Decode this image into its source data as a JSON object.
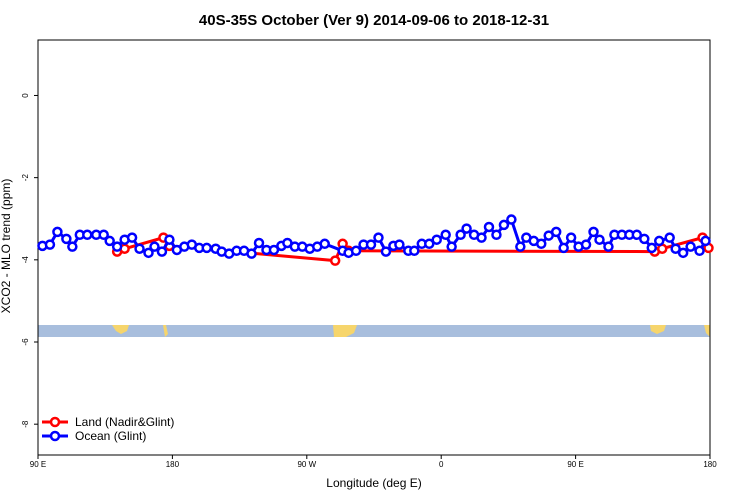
{
  "chart_data": {
    "type": "line",
    "title": "40S-35S October (Ver 9)   2014-09-06 to 2018-12-31",
    "x_label": "Longitude (deg E)",
    "y_label": "XCO2 - MLO trend (ppm)",
    "xlim": [
      90,
      540
    ],
    "ylim": [
      -8.75,
      1.35
    ],
    "xticks": [
      {
        "value": 90,
        "label": "90 E"
      },
      {
        "value": 180,
        "label": "180"
      },
      {
        "value": 270,
        "label": "90 W"
      },
      {
        "value": 360,
        "label": "0"
      },
      {
        "value": 450,
        "label": "90 E"
      },
      {
        "value": 540,
        "label": "180"
      }
    ],
    "yticks": [
      0,
      -2,
      -4,
      -6,
      -8
    ],
    "legend": "bottomleft",
    "series": [
      {
        "name": "Land (Nadir&Glint)",
        "color": "#ff0000",
        "x": [
          143,
          148,
          174,
          178,
          289,
          294,
          298,
          503,
          508,
          535,
          539
        ],
        "values": [
          -3.8,
          -3.73,
          -3.46,
          -3.66,
          -4.02,
          -3.61,
          -3.78,
          -3.8,
          -3.73,
          -3.46,
          -3.71
        ]
      },
      {
        "name": "Ocean (Glint)",
        "color": "#0000ff",
        "x": [
          93,
          98,
          103,
          109,
          113,
          118,
          123,
          129,
          134,
          138,
          143,
          148,
          153,
          158,
          164,
          168,
          173,
          178,
          183,
          188,
          193,
          198,
          203,
          209,
          213,
          218,
          223,
          228,
          233,
          238,
          243,
          248,
          253,
          257,
          262,
          267,
          272,
          277,
          282,
          294,
          298,
          303,
          308,
          313,
          318,
          323,
          328,
          332,
          338,
          342,
          347,
          352,
          357,
          363,
          367,
          373,
          377,
          382,
          387,
          392,
          397,
          402,
          407,
          413,
          417,
          422,
          427,
          432,
          437,
          442,
          447,
          452,
          457,
          462,
          466,
          472,
          476,
          481,
          486,
          491,
          496,
          501,
          506,
          513,
          517,
          522,
          527,
          533,
          537
        ],
        "values": [
          -3.66,
          -3.63,
          -3.32,
          -3.49,
          -3.68,
          -3.39,
          -3.39,
          -3.39,
          -3.39,
          -3.54,
          -3.68,
          -3.51,
          -3.46,
          -3.73,
          -3.83,
          -3.68,
          -3.8,
          -3.51,
          -3.76,
          -3.68,
          -3.63,
          -3.71,
          -3.71,
          -3.73,
          -3.8,
          -3.85,
          -3.78,
          -3.78,
          -3.85,
          -3.59,
          -3.76,
          -3.76,
          -3.66,
          -3.59,
          -3.68,
          -3.68,
          -3.73,
          -3.68,
          -3.61,
          -3.78,
          -3.83,
          -3.78,
          -3.63,
          -3.63,
          -3.46,
          -3.8,
          -3.66,
          -3.63,
          -3.78,
          -3.78,
          -3.61,
          -3.61,
          -3.51,
          -3.39,
          -3.68,
          -3.39,
          -3.24,
          -3.39,
          -3.46,
          -3.2,
          -3.39,
          -3.15,
          -3.02,
          -3.68,
          -3.46,
          -3.54,
          -3.61,
          -3.41,
          -3.32,
          -3.71,
          -3.46,
          -3.68,
          -3.63,
          -3.32,
          -3.51,
          -3.68,
          -3.39,
          -3.39,
          -3.39,
          -3.39,
          -3.49,
          -3.71,
          -3.54,
          -3.46,
          -3.73,
          -3.83,
          -3.68,
          -3.78,
          -3.54
        ]
      }
    ]
  }
}
